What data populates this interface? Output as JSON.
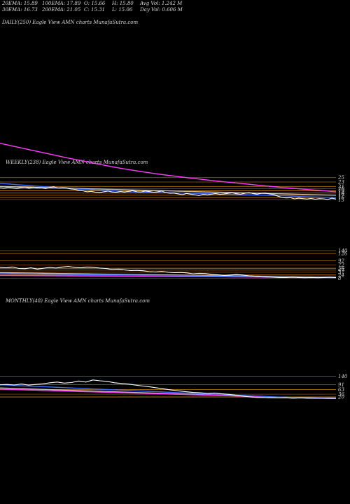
{
  "header": {
    "row1": [
      {
        "label": "20EMA: 15.89"
      },
      {
        "label": "100EMA: 17.89"
      },
      {
        "label": "O: 15.66"
      },
      {
        "label": "H: 15.80"
      },
      {
        "label": "Avg Vol: 1.242  M"
      }
    ],
    "row2": [
      {
        "label": "30EMA: 16.73"
      },
      {
        "label": "200EMA: 21.05"
      },
      {
        "label": "C: 15.31"
      },
      {
        "label": "L: 15.06"
      },
      {
        "label": "Day Vol: 0.606  M"
      }
    ]
  },
  "panels": {
    "daily_title": "DAILY(250) Eagle  View  AMN  charts MunafaSutra.com",
    "weekly_title": "WEEKLY(238) Eagle  View  AMN  charts MunafaSutra.com",
    "monthly_title": "MONTHLY(48) Eagle  View  AMN  charts MunafaSutra.com"
  },
  "chart_data": [
    {
      "type": "line",
      "name": "daily",
      "ticks": [
        "25",
        "23",
        "21",
        "20",
        "19",
        "18",
        "17",
        "16",
        "15"
      ],
      "levels": [
        25,
        23,
        21,
        20,
        19,
        18,
        17,
        16,
        15
      ],
      "ylim": [
        13.5,
        42
      ],
      "series": [
        {
          "color": "#ffffff",
          "values": [
            20.4,
            20.2,
            20.6,
            20.3,
            20.1,
            20.4,
            20.6,
            20.2,
            20.5,
            20.3,
            20.4,
            20.1,
            20.6,
            20.8,
            20.3,
            20.5,
            20.4,
            19.9,
            19.7,
            19.2,
            19.0,
            18.6,
            18.8,
            18.4,
            18.2,
            18.6,
            18.9,
            18.5,
            18.3,
            18.7,
            18.4,
            18.8,
            19.1,
            18.6,
            18.5,
            18.9,
            18.7,
            18.4,
            18.6,
            18.9,
            18.2,
            17.9,
            18.0,
            17.6,
            17.3,
            17.8,
            17.5,
            17.2,
            16.9,
            17.4,
            17.1,
            17.5,
            17.8,
            17.4,
            17.6,
            17.9,
            18.1,
            17.7,
            17.5,
            17.9,
            18.2,
            17.8,
            17.5,
            17.9,
            18.0,
            17.6,
            17.3,
            16.6,
            16.0,
            15.8,
            15.9,
            15.4,
            15.7,
            15.5,
            15.3,
            15.6,
            15.2,
            15.5,
            15.4,
            15.1,
            15.7,
            15.3
          ]
        },
        {
          "color": "#3c6cff",
          "values": [
            22.4,
            22.1,
            21.8,
            21.5,
            21.2,
            20.9,
            20.6,
            20.3,
            20.0,
            19.8,
            19.6,
            19.4,
            19.2,
            19.0,
            18.8,
            18.6,
            18.5,
            18.4,
            18.3,
            18.2,
            18.1,
            18.0,
            17.9,
            17.8,
            17.7,
            17.6,
            17.5,
            17.4,
            17.3,
            17.2,
            17.1,
            17.0,
            16.9,
            16.8,
            16.6,
            16.4,
            16.3,
            16.2,
            16.1,
            16.0
          ]
        },
        {
          "color": "#ff3cff",
          "values": [
            40.5,
            39.4,
            38.3,
            37.2,
            36.1,
            35.0,
            33.9,
            32.9,
            31.9,
            30.9,
            29.9,
            29.0,
            28.2,
            27.4,
            26.7,
            26.0,
            25.4,
            24.8,
            24.2,
            23.6,
            23.1,
            22.6,
            22.1,
            21.6,
            21.1,
            20.6,
            20.2,
            19.8,
            19.4,
            19.0,
            18.6
          ]
        },
        {
          "color": "#c0c0c0",
          "values": [
            21.0,
            20.8,
            20.6,
            20.4,
            20.2,
            20.0,
            19.8,
            19.6,
            19.4,
            19.2,
            19.0,
            18.8,
            18.6,
            18.4,
            18.2,
            18.0,
            17.8,
            17.6,
            17.4,
            17.2,
            17.0
          ]
        }
      ]
    },
    {
      "type": "line",
      "name": "weekly",
      "ticks": [
        "140",
        "126",
        "92",
        "72",
        "56",
        "47",
        "37",
        "24",
        "8"
      ],
      "levels": [
        140,
        126,
        92,
        72,
        56,
        47,
        37,
        24,
        8
      ],
      "ylim": [
        0,
        160
      ],
      "series": [
        {
          "color": "#ffffff",
          "values": [
            60,
            58,
            62,
            55,
            54,
            58,
            52,
            56,
            60,
            57,
            62,
            65,
            60,
            58,
            62,
            60,
            57,
            55,
            50,
            52,
            48,
            45,
            46,
            44,
            40,
            38,
            41,
            37,
            35,
            36,
            34,
            30,
            32,
            31,
            27,
            25,
            22,
            24,
            26,
            24,
            20,
            18,
            15,
            14,
            13,
            12,
            12,
            13,
            12,
            11,
            12,
            11,
            12,
            13,
            12
          ]
        },
        {
          "color": "#3c6cff",
          "values": [
            30,
            29,
            28,
            27,
            26,
            25,
            24,
            23,
            22,
            21,
            20,
            19,
            18,
            17,
            16,
            15,
            14,
            13,
            12
          ]
        },
        {
          "color": "#ff3cff",
          "values": [
            22,
            21,
            20,
            19,
            18,
            17,
            16,
            15,
            14,
            13,
            12
          ]
        },
        {
          "color": "#c0c0c0",
          "values": [
            35,
            33,
            31,
            29,
            27,
            25,
            23,
            21,
            19,
            17,
            15,
            13
          ]
        }
      ]
    },
    {
      "type": "line",
      "name": "monthly",
      "ticks": [
        "140",
        "91",
        "63",
        "36",
        "20"
      ],
      "levels": [
        140,
        91,
        63,
        36,
        20
      ],
      "ylim": [
        0,
        190
      ],
      "series": [
        {
          "color": "#ffffff",
          "values": [
            90,
            92,
            89,
            95,
            88,
            92,
            96,
            102,
            106,
            100,
            103,
            112,
            106,
            118,
            113,
            110,
            102,
            98,
            94,
            88,
            83,
            78,
            72,
            66,
            60,
            55,
            50,
            46,
            44,
            40,
            42,
            38,
            35,
            30,
            25,
            20,
            17,
            16,
            15,
            14,
            15,
            13,
            14,
            13,
            12,
            12,
            13,
            12
          ]
        },
        {
          "color": "#3c6cff",
          "values": [
            90,
            85,
            80,
            75,
            70,
            65,
            60,
            55,
            50,
            45,
            40,
            35,
            30,
            25,
            20,
            16,
            13,
            12
          ]
        },
        {
          "color": "#ff3cff",
          "values": [
            65,
            61,
            57,
            53,
            49,
            45,
            41,
            37,
            33,
            29,
            25,
            21,
            17,
            14,
            12
          ]
        },
        {
          "color": "#c0c0c0",
          "values": [
            72,
            67,
            62,
            57,
            52,
            47,
            42,
            37,
            32,
            27,
            22,
            18,
            14,
            12
          ]
        }
      ]
    }
  ]
}
